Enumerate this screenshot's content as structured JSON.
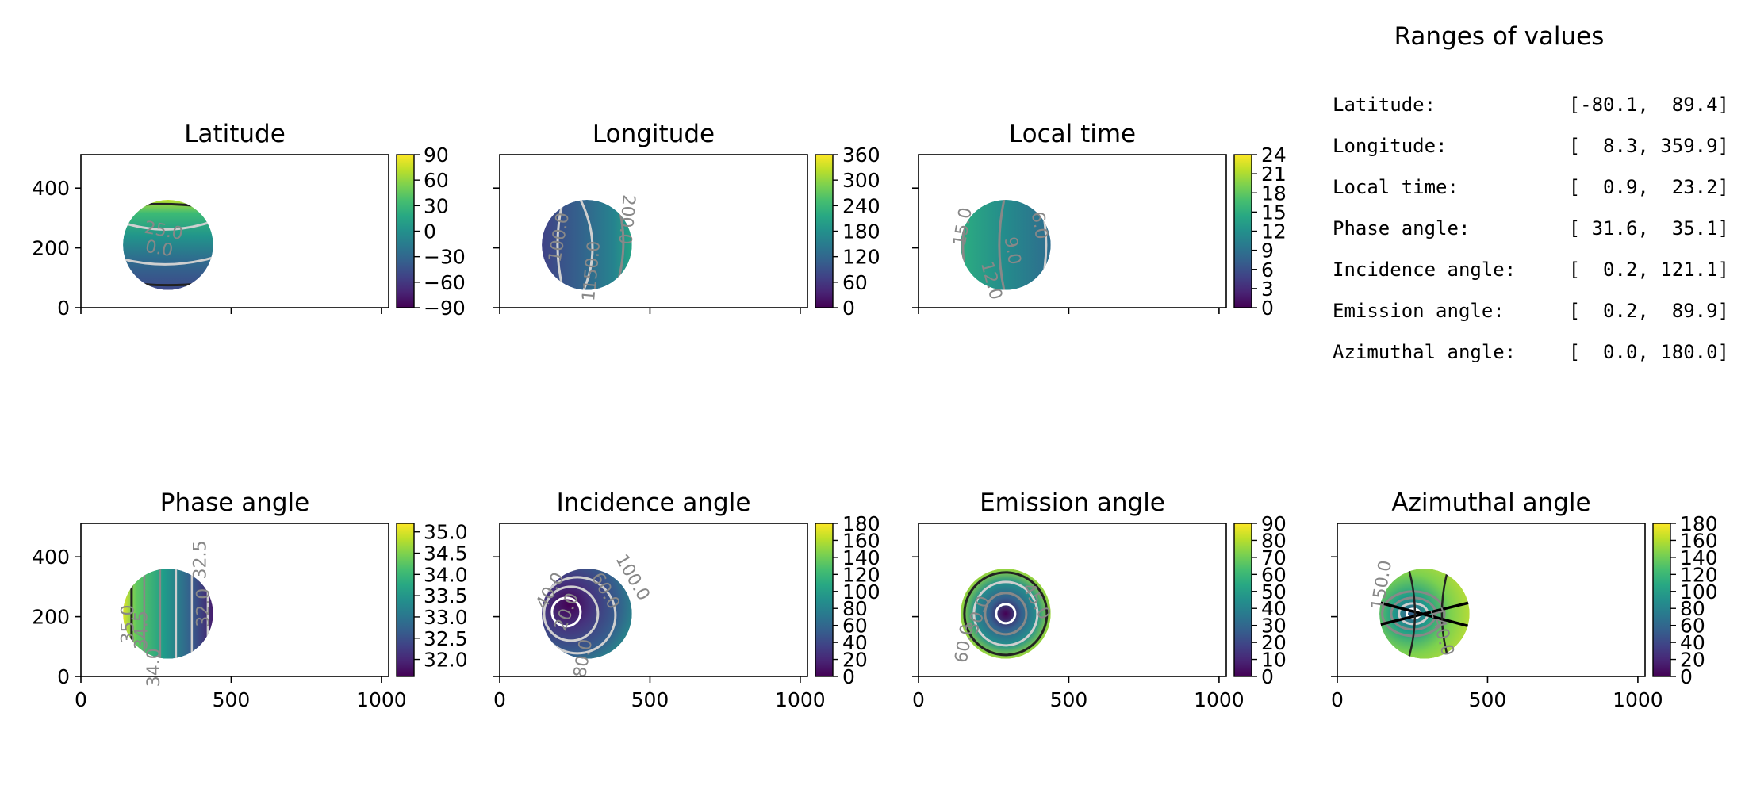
{
  "colors": {
    "viridis": [
      "#440154",
      "#482878",
      "#3e4989",
      "#31688e",
      "#26828e",
      "#1f9e89",
      "#35b779",
      "#6ece58",
      "#b5de2b",
      "#fde725"
    ],
    "contour_dark": "#222222",
    "contour_mid": "#888888",
    "contour_light": "#cfcfcf",
    "contour_white": "#ffffff"
  },
  "info_panel": {
    "title": "Ranges of values",
    "rows": [
      {
        "label": "Latitude:",
        "range": "[-80.1,  89.4]"
      },
      {
        "label": "Longitude:",
        "range": "[  8.3, 359.9]"
      },
      {
        "label": "Local time:",
        "range": "[  0.9,  23.2]"
      },
      {
        "label": "Phase angle:",
        "range": "[ 31.6,  35.1]"
      },
      {
        "label": "Incidence angle:",
        "range": "[  0.2, 121.1]"
      },
      {
        "label": "Emission angle:",
        "range": "[  0.2,  89.9]"
      },
      {
        "label": "Azimuthal angle:",
        "range": "[  0.0, 180.0]"
      }
    ]
  },
  "chart_data": [
    {
      "type": "heatmap",
      "title": "Latitude",
      "xlim": [
        0,
        1024
      ],
      "ylim": [
        0,
        512
      ],
      "xticks": [
        0,
        500,
        1000
      ],
      "yticks": [
        0,
        200,
        400
      ],
      "show_xticklabels": false,
      "show_yticklabels": true,
      "disc": {
        "cx": 290,
        "cy": 210,
        "r": 150
      },
      "pattern": "lat",
      "cmap_reverse": false,
      "colorbar": {
        "min": -90,
        "max": 90,
        "ticks": [
          -90,
          -60,
          -30,
          0,
          30,
          60,
          90
        ],
        "labels": [
          "−90",
          "−60",
          "−30",
          "0",
          "30",
          "60",
          "90"
        ]
      },
      "contour_labels": [
        {
          "text": "25.0",
          "x": 275,
          "y": 255,
          "rot": 10
        },
        {
          "text": "0.0",
          "x": 260,
          "y": 195,
          "rot": 10
        }
      ]
    },
    {
      "type": "heatmap",
      "title": "Longitude",
      "xlim": [
        0,
        1024
      ],
      "ylim": [
        0,
        512
      ],
      "xticks": [
        0,
        500,
        1000
      ],
      "yticks": [
        0,
        200,
        400
      ],
      "show_xticklabels": false,
      "show_yticklabels": false,
      "disc": {
        "cx": 290,
        "cy": 210,
        "r": 150
      },
      "pattern": "lon",
      "cmap_reverse": false,
      "colorbar": {
        "min": 0,
        "max": 360,
        "ticks": [
          0,
          60,
          120,
          180,
          240,
          300,
          360
        ],
        "labels": [
          "0",
          "60",
          "120",
          "180",
          "240",
          "300",
          "360"
        ]
      },
      "contour_labels": [
        {
          "text": "100.0",
          "x": 200,
          "y": 235,
          "rot": -80
        },
        {
          "text": "150.0",
          "x": 310,
          "y": 140,
          "rot": -85
        },
        {
          "text": "200.0",
          "x": 420,
          "y": 295,
          "rot": 95
        },
        {
          "text": "1",
          "x": 300,
          "y": 40,
          "rot": -85
        }
      ]
    },
    {
      "type": "heatmap",
      "title": "Local time",
      "xlim": [
        0,
        1024
      ],
      "ylim": [
        0,
        512
      ],
      "xticks": [
        0,
        500,
        1000
      ],
      "yticks": [
        0,
        200,
        400
      ],
      "show_xticklabels": false,
      "show_yticklabels": false,
      "disc": {
        "cx": 290,
        "cy": 210,
        "r": 150
      },
      "pattern": "lt",
      "cmap_reverse": false,
      "colorbar": {
        "min": 0,
        "max": 24,
        "ticks": [
          0,
          3,
          6,
          9,
          12,
          15,
          18,
          21,
          24
        ],
        "labels": [
          "0",
          "3",
          "6",
          "9",
          "12",
          "15",
          "18",
          "21",
          "24"
        ]
      },
      "contour_labels": [
        {
          "text": "15.0",
          "x": 150,
          "y": 270,
          "rot": -80
        },
        {
          "text": "9.0",
          "x": 310,
          "y": 190,
          "rot": 80
        },
        {
          "text": "12.0",
          "x": 240,
          "y": 90,
          "rot": 75
        },
        {
          "text": "6.0",
          "x": 400,
          "y": 275,
          "rot": 80
        }
      ]
    },
    {
      "type": "blank"
    },
    {
      "type": "heatmap",
      "title": "Phase angle",
      "xlim": [
        0,
        1024
      ],
      "ylim": [
        0,
        512
      ],
      "xticks": [
        0,
        500,
        1000
      ],
      "yticks": [
        0,
        200,
        400
      ],
      "show_xticklabels": true,
      "show_yticklabels": true,
      "disc": {
        "cx": 290,
        "cy": 210,
        "r": 150
      },
      "pattern": "phase",
      "cmap_reverse": false,
      "colorbar": {
        "min": 31.6,
        "max": 35.2,
        "ticks": [
          32.0,
          32.5,
          33.0,
          33.5,
          34.0,
          34.5,
          35.0
        ],
        "labels": [
          "32.0",
          "32.5",
          "33.0",
          "33.5",
          "34.0",
          "34.5",
          "35.0"
        ]
      },
      "contour_labels": [
        {
          "text": "35.0",
          "x": 160,
          "y": 175,
          "rot": -90
        },
        {
          "text": "34.5",
          "x": 205,
          "y": 155,
          "rot": -90
        },
        {
          "text": "34.0",
          "x": 245,
          "y": 30,
          "rot": -90
        },
        {
          "text": "32.0",
          "x": 410,
          "y": 230,
          "rot": -90
        },
        {
          "text": "32.5",
          "x": 400,
          "y": 390,
          "rot": -90
        }
      ]
    },
    {
      "type": "heatmap",
      "title": "Incidence angle",
      "xlim": [
        0,
        1024
      ],
      "ylim": [
        0,
        512
      ],
      "xticks": [
        0,
        500,
        1000
      ],
      "yticks": [
        0,
        200,
        400
      ],
      "show_xticklabels": true,
      "show_yticklabels": false,
      "disc": {
        "cx": 290,
        "cy": 210,
        "r": 150
      },
      "pattern": "inc",
      "cmap_reverse": false,
      "colorbar": {
        "min": 0,
        "max": 180,
        "ticks": [
          0,
          20,
          40,
          60,
          80,
          100,
          120,
          140,
          160,
          180
        ],
        "labels": [
          "0",
          "20",
          "40",
          "60",
          "80",
          "100",
          "120",
          "140",
          "160",
          "180"
        ]
      },
      "contour_labels": [
        {
          "text": "20.0",
          "x": 225,
          "y": 215,
          "rot": -70
        },
        {
          "text": "40.0",
          "x": 170,
          "y": 285,
          "rot": -60
        },
        {
          "text": "60.0",
          "x": 350,
          "y": 285,
          "rot": 60
        },
        {
          "text": "100.0",
          "x": 440,
          "y": 330,
          "rot": 60
        },
        {
          "text": "80.0",
          "x": 280,
          "y": 60,
          "rot": -80
        }
      ]
    },
    {
      "type": "heatmap",
      "title": "Emission angle",
      "xlim": [
        0,
        1024
      ],
      "ylim": [
        0,
        512
      ],
      "xticks": [
        0,
        500,
        1000
      ],
      "yticks": [
        0,
        200,
        400
      ],
      "show_xticklabels": true,
      "show_yticklabels": false,
      "disc": {
        "cx": 290,
        "cy": 210,
        "r": 150
      },
      "pattern": "emi",
      "cmap_reverse": false,
      "colorbar": {
        "min": 0,
        "max": 90,
        "ticks": [
          0,
          10,
          20,
          30,
          40,
          50,
          60,
          70,
          80,
          90
        ],
        "labels": [
          "0",
          "10",
          "20",
          "30",
          "40",
          "50",
          "60",
          "70",
          "80",
          "90"
        ]
      },
      "contour_labels": [
        {
          "text": "30.0",
          "x": 200,
          "y": 205,
          "rot": -70
        },
        {
          "text": "60.0",
          "x": 155,
          "y": 110,
          "rot": -80
        },
        {
          "text": "45.0",
          "x": 390,
          "y": 250,
          "rot": 60
        }
      ]
    },
    {
      "type": "heatmap",
      "title": "Azimuthal angle",
      "xlim": [
        0,
        1024
      ],
      "ylim": [
        0,
        512
      ],
      "xticks": [
        0,
        500,
        1000
      ],
      "yticks": [
        0,
        200,
        400
      ],
      "show_xticklabels": true,
      "show_yticklabels": false,
      "disc": {
        "cx": 290,
        "cy": 210,
        "r": 150
      },
      "pattern": "azi",
      "cmap_reverse": true,
      "colorbar": {
        "min": 0,
        "max": 180,
        "ticks": [
          0,
          20,
          40,
          60,
          80,
          100,
          120,
          140,
          160,
          180
        ],
        "labels": [
          "0",
          "20",
          "40",
          "60",
          "80",
          "100",
          "120",
          "140",
          "160",
          "180"
        ]
      },
      "contour_labels": [
        {
          "text": "150.0",
          "x": 150,
          "y": 305,
          "rot": -80
        },
        {
          "text": "140.0",
          "x": 345,
          "y": 150,
          "rot": 75
        }
      ]
    }
  ]
}
